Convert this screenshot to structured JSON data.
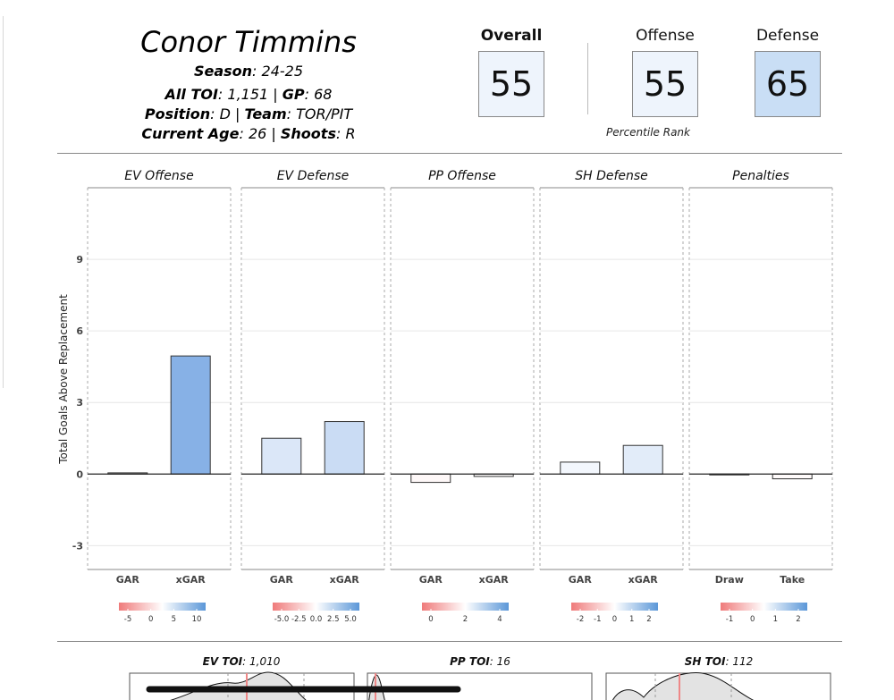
{
  "player": {
    "name": "Conor Timmins",
    "season_label": "Season",
    "season": "24-25",
    "toi_label": "All TOI",
    "toi": "1,151",
    "gp_label": "GP",
    "gp": "68",
    "position_label": "Position",
    "position": "D",
    "team_label": "Team",
    "team": "TOR/PIT",
    "age_label": "Current Age",
    "age": "26",
    "shoots_label": "Shoots",
    "shoots": "R"
  },
  "scores": {
    "overall_label": "Overall",
    "overall": "55",
    "offense_label": "Offense",
    "offense": "55",
    "defense_label": "Defense",
    "defense": "65",
    "percentile_label": "Percentile Rank",
    "colors": {
      "overall": "#eef4fc",
      "offense": "#eef4fc",
      "defense": "#c9def5"
    }
  },
  "chart_data": {
    "type": "bar",
    "ylabel": "Total Goals Above Replacement",
    "ylim": [
      -4.0,
      12.0
    ],
    "yticks": [
      -3,
      0,
      3,
      6,
      9
    ],
    "grid": true,
    "panels": [
      {
        "title": "EV Offense",
        "categories": [
          "GAR",
          "xGAR"
        ],
        "values": [
          0.05,
          4.95
        ],
        "legend_ticks": [
          "-5",
          "0",
          "5",
          "10"
        ]
      },
      {
        "title": "EV Defense",
        "categories": [
          "GAR",
          "xGAR"
        ],
        "values": [
          1.5,
          2.2
        ],
        "legend_ticks": [
          "-5.0",
          "-2.5",
          "0.0",
          "2.5",
          "5.0"
        ]
      },
      {
        "title": "PP Offense",
        "categories": [
          "GAR",
          "xGAR"
        ],
        "values": [
          -0.35,
          -0.1
        ],
        "legend_ticks": [
          "0",
          "2",
          "4"
        ]
      },
      {
        "title": "SH Defense",
        "categories": [
          "GAR",
          "xGAR"
        ],
        "values": [
          0.5,
          1.2
        ],
        "legend_ticks": [
          "-2",
          "-1",
          "0",
          "1",
          "2"
        ]
      },
      {
        "title": "Penalties",
        "categories": [
          "Draw",
          "Take"
        ],
        "values": [
          -0.02,
          -0.2
        ],
        "legend_ticks": [
          "-1",
          "0",
          "1",
          "2"
        ]
      }
    ]
  },
  "toi_panels": [
    {
      "label": "EV TOI",
      "value": "1,010"
    },
    {
      "label": "PP TOI",
      "value": "16"
    },
    {
      "label": "SH TOI",
      "value": "112"
    }
  ]
}
